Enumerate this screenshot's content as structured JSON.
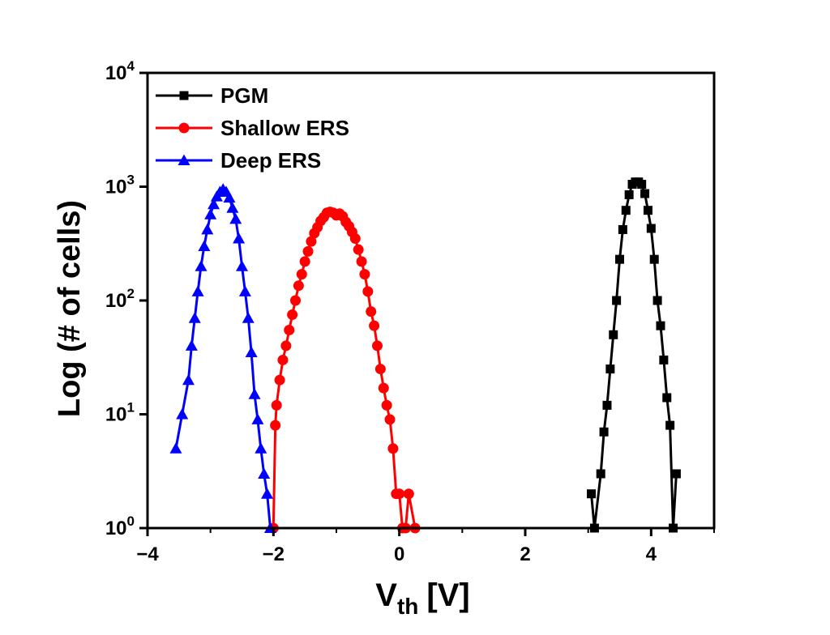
{
  "chart_data": {
    "type": "line",
    "xlabel": "V",
    "xlabel_sub": "th",
    "xlabel_unit": "[V]",
    "ylabel": "Log (# of cells)",
    "xlim": [
      -4,
      5
    ],
    "ylim": [
      1,
      10000
    ],
    "yscale": "log",
    "x_ticks": [
      -4,
      -2,
      0,
      2,
      4
    ],
    "x_tick_labels": [
      "−4",
      "−2",
      "0",
      "2",
      "4"
    ],
    "y_ticks": [
      1,
      10,
      100,
      1000,
      10000
    ],
    "y_tick_labels": [
      {
        "base": "10",
        "exp": "0"
      },
      {
        "base": "10",
        "exp": "1"
      },
      {
        "base": "10",
        "exp": "2"
      },
      {
        "base": "10",
        "exp": "3"
      },
      {
        "base": "10",
        "exp": "4"
      }
    ],
    "legend_position": "top-left",
    "grid": false,
    "series": [
      {
        "name": "PGM",
        "color": "#000000",
        "marker": "square",
        "x": [
          3.05,
          3.1,
          3.2,
          3.25,
          3.3,
          3.35,
          3.4,
          3.45,
          3.5,
          3.55,
          3.6,
          3.65,
          3.7,
          3.75,
          3.8,
          3.85,
          3.9,
          3.95,
          4.0,
          4.05,
          4.1,
          4.15,
          4.2,
          4.25,
          4.3,
          4.35,
          4.4
        ],
        "y": [
          2,
          1,
          3,
          7,
          12,
          25,
          50,
          100,
          230,
          420,
          620,
          850,
          1050,
          1100,
          1100,
          1050,
          870,
          620,
          430,
          230,
          100,
          60,
          30,
          14,
          8,
          1,
          3
        ]
      },
      {
        "name": "Shallow ERS",
        "color": "#ff0000",
        "marker": "circle",
        "x": [
          -2.0,
          -1.97,
          -1.95,
          -1.9,
          -1.85,
          -1.8,
          -1.75,
          -1.7,
          -1.65,
          -1.6,
          -1.55,
          -1.5,
          -1.45,
          -1.4,
          -1.35,
          -1.3,
          -1.25,
          -1.2,
          -1.15,
          -1.1,
          -1.05,
          -1.0,
          -0.95,
          -0.9,
          -0.85,
          -0.8,
          -0.75,
          -0.7,
          -0.65,
          -0.6,
          -0.55,
          -0.5,
          -0.45,
          -0.4,
          -0.35,
          -0.3,
          -0.25,
          -0.2,
          -0.15,
          -0.1,
          -0.05,
          0.0,
          0.05,
          0.1,
          0.15,
          0.25
        ],
        "y": [
          1,
          8,
          12,
          20,
          30,
          40,
          55,
          75,
          100,
          135,
          170,
          220,
          270,
          330,
          390,
          440,
          500,
          540,
          590,
          600,
          590,
          560,
          580,
          550,
          490,
          450,
          400,
          350,
          280,
          220,
          170,
          120,
          80,
          60,
          40,
          25,
          17,
          12,
          9,
          5,
          2,
          2,
          1,
          1,
          2,
          1
        ]
      },
      {
        "name": "Deep ERS",
        "color": "#0000ff",
        "marker": "triangle",
        "x": [
          -3.55,
          -3.45,
          -3.35,
          -3.3,
          -3.25,
          -3.2,
          -3.15,
          -3.1,
          -3.05,
          -3.0,
          -2.95,
          -2.9,
          -2.85,
          -2.8,
          -2.75,
          -2.7,
          -2.65,
          -2.6,
          -2.55,
          -2.5,
          -2.45,
          -2.4,
          -2.35,
          -2.3,
          -2.25,
          -2.2,
          -2.15,
          -2.1,
          -2.05
        ],
        "y": [
          5,
          10,
          20,
          40,
          70,
          120,
          200,
          300,
          420,
          570,
          700,
          820,
          900,
          950,
          900,
          800,
          650,
          520,
          350,
          200,
          120,
          70,
          35,
          15,
          9,
          5,
          3,
          2,
          1
        ]
      }
    ]
  }
}
